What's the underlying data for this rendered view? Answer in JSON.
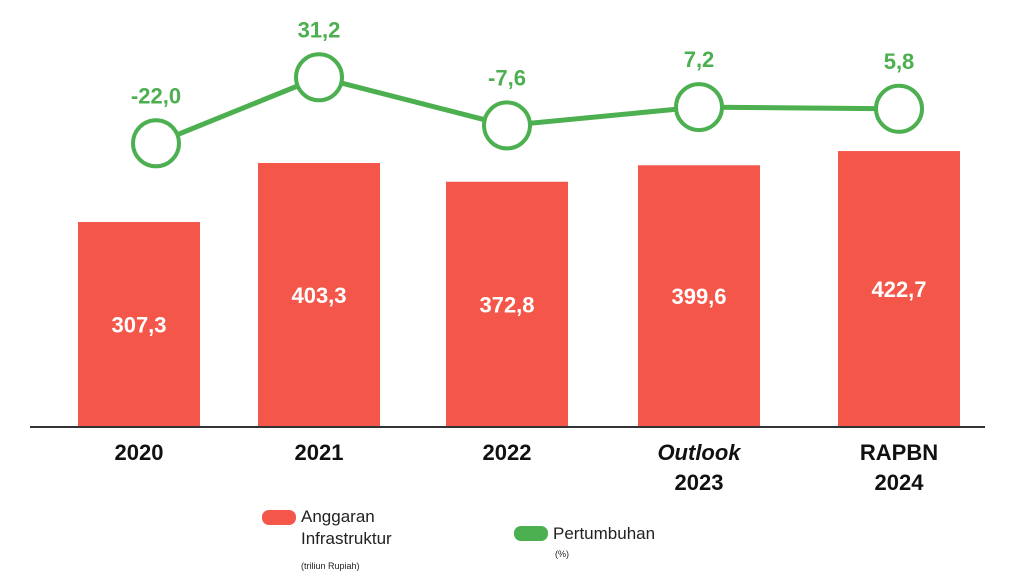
{
  "chart_data": {
    "type": "bar+line",
    "categories": [
      [
        "2020"
      ],
      [
        "2021"
      ],
      [
        "2022"
      ],
      [
        "Outlook",
        "2023"
      ],
      [
        "RAPBN",
        "2024"
      ]
    ],
    "category_italic_first_line": [
      false,
      false,
      false,
      true,
      false
    ],
    "series": [
      {
        "name": "Anggaran Infrastruktur",
        "unit": "(triliun Rupiah)",
        "type": "bar",
        "values": [
          307.3,
          403.3,
          372.8,
          399.6,
          422.7
        ],
        "labels": [
          "307,3",
          "403,3",
          "372,8",
          "399,6",
          "422,7"
        ],
        "color": "#f4574a"
      },
      {
        "name": "Pertumbuhan",
        "unit": "(%)",
        "type": "line",
        "values": [
          -22.0,
          31.2,
          -7.6,
          7.2,
          5.8
        ],
        "labels": [
          "-22,0",
          "31,2",
          "-7,6",
          "7,2",
          "5,8"
        ],
        "color": "#4caf50"
      }
    ],
    "legend_position": "bottom",
    "grid": false
  }
}
